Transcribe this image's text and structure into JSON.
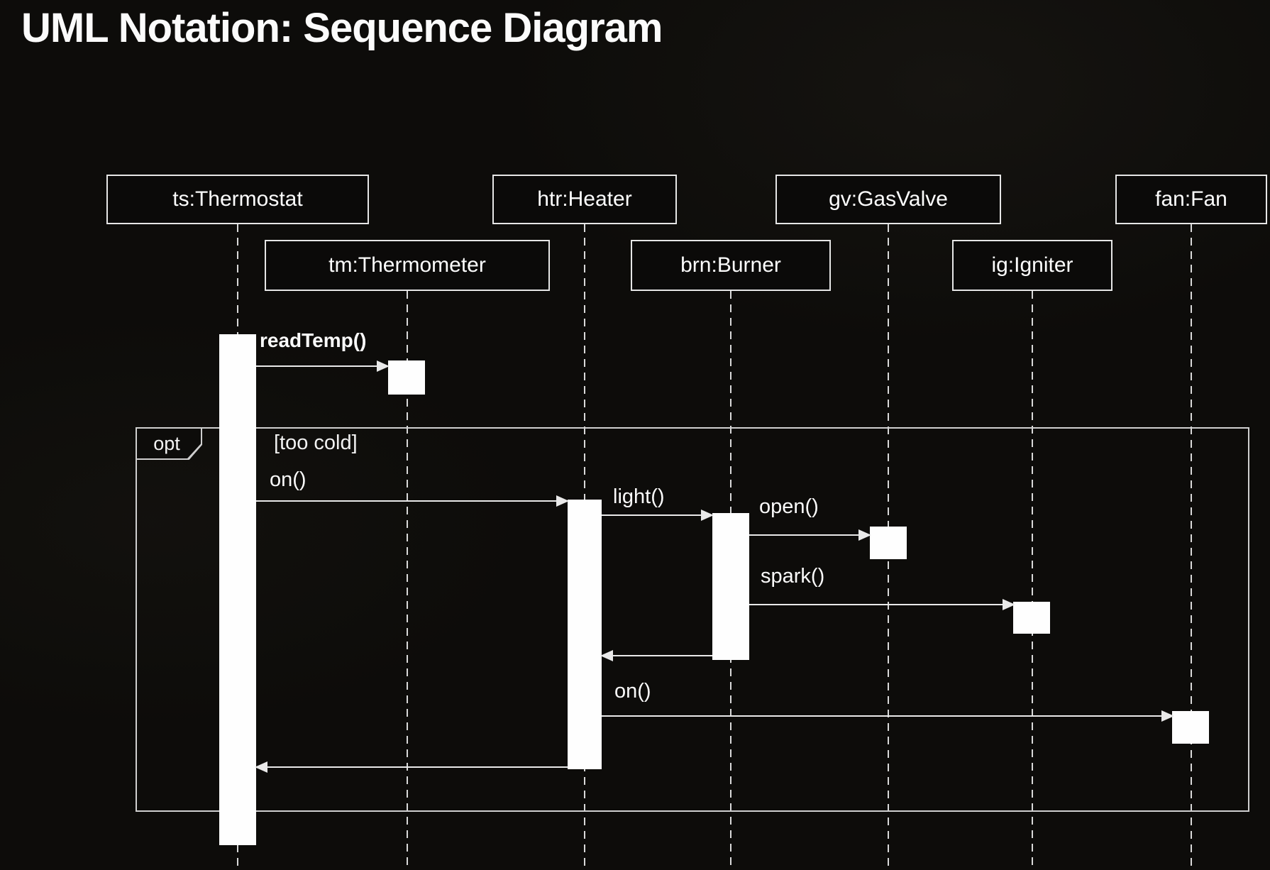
{
  "title": "UML Notation: Sequence Diagram",
  "lifelines": [
    {
      "id": "ts",
      "label": "ts:Thermostat"
    },
    {
      "id": "tm",
      "label": "tm:Thermometer"
    },
    {
      "id": "htr",
      "label": "htr:Heater"
    },
    {
      "id": "brn",
      "label": "brn:Burner"
    },
    {
      "id": "gv",
      "label": "gv:GasValve"
    },
    {
      "id": "ig",
      "label": "ig:Igniter"
    },
    {
      "id": "fan",
      "label": "fan:Fan"
    }
  ],
  "frame": {
    "operator": "opt",
    "guard": "[too cold]"
  },
  "messages": [
    {
      "label": "readTemp()",
      "from": "ts",
      "to": "tm",
      "type": "call"
    },
    {
      "label": "on()",
      "from": "ts",
      "to": "htr",
      "type": "call"
    },
    {
      "label": "light()",
      "from": "htr",
      "to": "brn",
      "type": "call"
    },
    {
      "label": "open()",
      "from": "brn",
      "to": "gv",
      "type": "call"
    },
    {
      "label": "spark()",
      "from": "brn",
      "to": "ig",
      "type": "call"
    },
    {
      "label": "",
      "from": "brn",
      "to": "htr",
      "type": "return"
    },
    {
      "label": "on()",
      "from": "htr",
      "to": "fan",
      "type": "call"
    },
    {
      "label": "",
      "from": "htr",
      "to": "ts",
      "type": "return"
    }
  ],
  "colors": {
    "background": "#0d0c0a",
    "line": "#e9e9e9",
    "text": "#ffffff"
  }
}
